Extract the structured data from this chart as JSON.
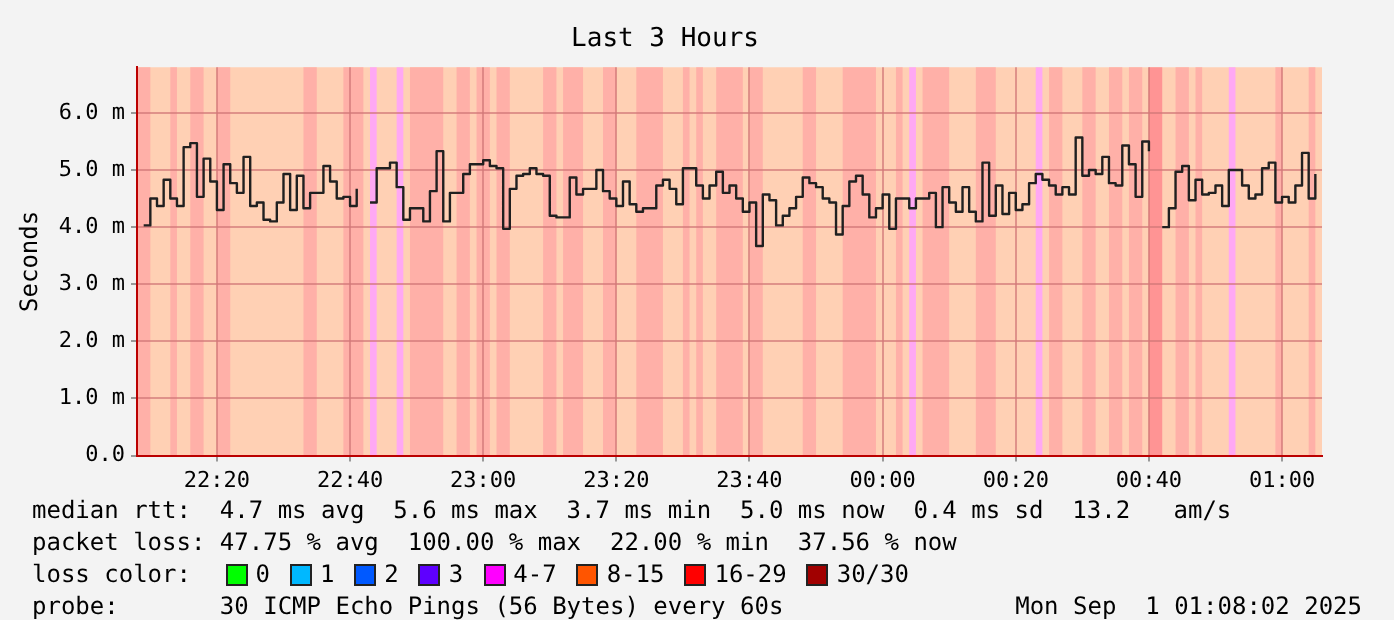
{
  "chart_data": {
    "type": "step",
    "title": "Last 3 Hours",
    "ylabel": "Seconds",
    "x": [
      "2025-08-31T22:09",
      "2025-08-31T22:10",
      "2025-08-31T22:11",
      "2025-08-31T22:12",
      "2025-08-31T22:13",
      "2025-08-31T22:14",
      "2025-08-31T22:15",
      "2025-08-31T22:16",
      "2025-08-31T22:17",
      "2025-08-31T22:18",
      "2025-08-31T22:19",
      "2025-08-31T22:20",
      "2025-08-31T22:21",
      "2025-08-31T22:22",
      "2025-08-31T22:23",
      "2025-08-31T22:24",
      "2025-08-31T22:25",
      "2025-08-31T22:26",
      "2025-08-31T22:27",
      "2025-08-31T22:28",
      "2025-08-31T22:29",
      "2025-08-31T22:30",
      "2025-08-31T22:31",
      "2025-08-31T22:32",
      "2025-08-31T22:33",
      "2025-08-31T22:34",
      "2025-08-31T22:35",
      "2025-08-31T22:36",
      "2025-08-31T22:37",
      "2025-08-31T22:38",
      "2025-08-31T22:39",
      "2025-08-31T22:40",
      "2025-08-31T22:41",
      "2025-08-31T22:42",
      "2025-08-31T22:43",
      "2025-08-31T22:44",
      "2025-08-31T22:45",
      "2025-08-31T22:46",
      "2025-08-31T22:47",
      "2025-08-31T22:48",
      "2025-08-31T22:49",
      "2025-08-31T22:50",
      "2025-08-31T22:51",
      "2025-08-31T22:52",
      "2025-08-31T22:53",
      "2025-08-31T22:54",
      "2025-08-31T22:55",
      "2025-08-31T22:56",
      "2025-08-31T22:57",
      "2025-08-31T22:58",
      "2025-08-31T22:59",
      "2025-08-31T23:00",
      "2025-08-31T23:01",
      "2025-08-31T23:02",
      "2025-08-31T23:03",
      "2025-08-31T23:04",
      "2025-08-31T23:05",
      "2025-08-31T23:06",
      "2025-08-31T23:07",
      "2025-08-31T23:08",
      "2025-08-31T23:09",
      "2025-08-31T23:10",
      "2025-08-31T23:11",
      "2025-08-31T23:12",
      "2025-08-31T23:13",
      "2025-08-31T23:14",
      "2025-08-31T23:15",
      "2025-08-31T23:16",
      "2025-08-31T23:17",
      "2025-08-31T23:18",
      "2025-08-31T23:19",
      "2025-08-31T23:20",
      "2025-08-31T23:21",
      "2025-08-31T23:22",
      "2025-08-31T23:23",
      "2025-08-31T23:24",
      "2025-08-31T23:25",
      "2025-08-31T23:26",
      "2025-08-31T23:27",
      "2025-08-31T23:28",
      "2025-08-31T23:29",
      "2025-08-31T23:30",
      "2025-08-31T23:31",
      "2025-08-31T23:32",
      "2025-08-31T23:33",
      "2025-08-31T23:34",
      "2025-08-31T23:35",
      "2025-08-31T23:36",
      "2025-08-31T23:37",
      "2025-08-31T23:38",
      "2025-08-31T23:39",
      "2025-08-31T23:40",
      "2025-08-31T23:41",
      "2025-08-31T23:42",
      "2025-08-31T23:43",
      "2025-08-31T23:44",
      "2025-08-31T23:45",
      "2025-08-31T23:46",
      "2025-08-31T23:47",
      "2025-08-31T23:48",
      "2025-08-31T23:49",
      "2025-08-31T23:50",
      "2025-08-31T23:51",
      "2025-08-31T23:52",
      "2025-08-31T23:53",
      "2025-08-31T23:54",
      "2025-08-31T23:55",
      "2025-08-31T23:56",
      "2025-08-31T23:57",
      "2025-08-31T23:58",
      "2025-08-31T23:59",
      "2025-09-01T00:00",
      "2025-09-01T00:01",
      "2025-09-01T00:02",
      "2025-09-01T00:03",
      "2025-09-01T00:04",
      "2025-09-01T00:05",
      "2025-09-01T00:06",
      "2025-09-01T00:07",
      "2025-09-01T00:08",
      "2025-09-01T00:09",
      "2025-09-01T00:10",
      "2025-09-01T00:11",
      "2025-09-01T00:12",
      "2025-09-01T00:13",
      "2025-09-01T00:14",
      "2025-09-01T00:15",
      "2025-09-01T00:16",
      "2025-09-01T00:17",
      "2025-09-01T00:18",
      "2025-09-01T00:19",
      "2025-09-01T00:20",
      "2025-09-01T00:21",
      "2025-09-01T00:22",
      "2025-09-01T00:23",
      "2025-09-01T00:24",
      "2025-09-01T00:25",
      "2025-09-01T00:26",
      "2025-09-01T00:27",
      "2025-09-01T00:28",
      "2025-09-01T00:29",
      "2025-09-01T00:30",
      "2025-09-01T00:31",
      "2025-09-01T00:32",
      "2025-09-01T00:33",
      "2025-09-01T00:34",
      "2025-09-01T00:35",
      "2025-09-01T00:36",
      "2025-09-01T00:37",
      "2025-09-01T00:38",
      "2025-09-01T00:39",
      "2025-09-01T00:40",
      "2025-09-01T00:41",
      "2025-09-01T00:42",
      "2025-09-01T00:43",
      "2025-09-01T00:44",
      "2025-09-01T00:45",
      "2025-09-01T00:46",
      "2025-09-01T00:47",
      "2025-09-01T00:48",
      "2025-09-01T00:49",
      "2025-09-01T00:50",
      "2025-09-01T00:51",
      "2025-09-01T00:52",
      "2025-09-01T00:53",
      "2025-09-01T00:54",
      "2025-09-01T00:55",
      "2025-09-01T00:56",
      "2025-09-01T00:57",
      "2025-09-01T00:58",
      "2025-09-01T00:59",
      "2025-09-01T01:00",
      "2025-09-01T01:01",
      "2025-09-01T01:02",
      "2025-09-01T01:03",
      "2025-09-01T01:04",
      "2025-09-01T01:05"
    ],
    "series": [
      {
        "color": "#202020",
        "values": [
          4.03,
          4.5,
          4.37,
          4.83,
          4.5,
          4.37,
          5.4,
          5.47,
          4.53,
          5.2,
          4.8,
          4.3,
          5.1,
          4.77,
          4.6,
          5.23,
          4.37,
          4.43,
          4.13,
          4.1,
          4.43,
          4.93,
          4.3,
          4.9,
          4.33,
          4.6,
          4.6,
          5.07,
          4.8,
          4.5,
          4.53,
          4.37,
          4.67,
          null,
          4.43,
          5.03,
          5.03,
          5.13,
          4.7,
          4.13,
          4.33,
          4.33,
          4.1,
          4.63,
          5.33,
          4.1,
          4.6,
          4.6,
          4.93,
          5.1,
          5.1,
          5.17,
          5.07,
          5.03,
          3.97,
          4.67,
          4.9,
          4.93,
          5.03,
          4.93,
          4.9,
          4.2,
          4.17,
          4.17,
          4.87,
          4.57,
          4.67,
          4.67,
          5.0,
          4.63,
          4.5,
          4.37,
          4.8,
          4.4,
          4.27,
          4.33,
          4.33,
          4.73,
          4.83,
          4.67,
          4.4,
          5.03,
          5.03,
          4.73,
          4.5,
          4.73,
          4.97,
          4.6,
          4.73,
          4.5,
          4.27,
          4.43,
          3.67,
          4.57,
          4.47,
          4.03,
          4.2,
          4.33,
          4.53,
          4.87,
          4.77,
          4.7,
          4.5,
          4.43,
          3.87,
          4.37,
          4.8,
          4.9,
          4.57,
          4.17,
          4.33,
          4.57,
          3.97,
          4.5,
          4.5,
          4.33,
          4.5,
          4.5,
          4.6,
          4.0,
          4.7,
          4.43,
          4.27,
          4.7,
          4.27,
          4.1,
          5.13,
          4.2,
          4.73,
          4.23,
          4.6,
          4.3,
          4.4,
          4.77,
          4.93,
          4.83,
          4.73,
          4.57,
          4.7,
          4.57,
          5.57,
          4.9,
          5.0,
          4.93,
          5.23,
          4.77,
          4.73,
          5.43,
          5.1,
          4.53,
          5.5,
          5.33,
          null,
          4.0,
          4.33,
          4.97,
          5.07,
          4.47,
          4.83,
          4.57,
          4.6,
          4.73,
          4.37,
          5.0,
          5.0,
          4.73,
          4.5,
          4.57,
          5.03,
          5.13,
          4.43,
          4.53,
          4.43,
          4.73,
          5.3,
          4.5,
          4.93
        ]
      }
    ],
    "xlim": [
      "2025-08-31T22:08",
      "2025-09-01T01:06"
    ],
    "xticks": [
      {
        "value": "2025-08-31T22:20",
        "label": "22:20"
      },
      {
        "value": "2025-08-31T22:40",
        "label": "22:40"
      },
      {
        "value": "2025-08-31T23:00",
        "label": "23:00"
      },
      {
        "value": "2025-08-31T23:20",
        "label": "23:20"
      },
      {
        "value": "2025-08-31T23:40",
        "label": "23:40"
      },
      {
        "value": "2025-09-01T00:00",
        "label": "00:00"
      },
      {
        "value": "2025-09-01T00:20",
        "label": "00:20"
      },
      {
        "value": "2025-09-01T00:40",
        "label": "00:40"
      },
      {
        "value": "2025-09-01T01:00",
        "label": "01:00"
      }
    ],
    "ylim": [
      0,
      6.8
    ],
    "yticks": [
      {
        "value": 0,
        "label": "0.0"
      },
      {
        "value": 1,
        "label": "1.0 m"
      },
      {
        "value": 2,
        "label": "2.0 m"
      },
      {
        "value": 3,
        "label": "3.0 m"
      },
      {
        "value": 4,
        "label": "4.0 m"
      },
      {
        "value": 5,
        "label": "5.0 m"
      },
      {
        "value": 6,
        "label": "6.0 m"
      }
    ],
    "grid": true,
    "marker": "none",
    "line_style": "solid",
    "legend": false,
    "bands": [
      {
        "axis": "x",
        "from": "2025-08-31T22:08",
        "to": "2025-09-01T01:06",
        "color": "#ffd0b4"
      },
      {
        "axis": "x",
        "from": "2025-08-31T22:08",
        "to": "2025-08-31T22:10",
        "color": "#ffb0a8"
      },
      {
        "axis": "x",
        "from": "2025-08-31T22:13",
        "to": "2025-08-31T22:14",
        "color": "#ffb0a8"
      },
      {
        "axis": "x",
        "from": "2025-08-31T22:16",
        "to": "2025-08-31T22:18",
        "color": "#ffb0a8"
      },
      {
        "axis": "x",
        "from": "2025-08-31T22:20",
        "to": "2025-08-31T22:22",
        "color": "#ffb0a8"
      },
      {
        "axis": "x",
        "from": "2025-08-31T22:33",
        "to": "2025-08-31T22:35",
        "color": "#ffb0a8"
      },
      {
        "axis": "x",
        "from": "2025-08-31T22:39",
        "to": "2025-08-31T22:42",
        "color": "#ffb0a8"
      },
      {
        "axis": "x",
        "from": "2025-08-31T22:43",
        "to": "2025-08-31T22:44",
        "color": "#ffa8f4"
      },
      {
        "axis": "x",
        "from": "2025-08-31T22:47",
        "to": "2025-08-31T22:48",
        "color": "#ffa8f4"
      },
      {
        "axis": "x",
        "from": "2025-08-31T22:49",
        "to": "2025-08-31T22:54",
        "color": "#ffb0a8"
      },
      {
        "axis": "x",
        "from": "2025-08-31T22:56",
        "to": "2025-08-31T22:58",
        "color": "#ffb0a8"
      },
      {
        "axis": "x",
        "from": "2025-08-31T22:59",
        "to": "2025-08-31T23:01",
        "color": "#ffb0a8"
      },
      {
        "axis": "x",
        "from": "2025-08-31T23:02",
        "to": "2025-08-31T23:04",
        "color": "#ffb0a8"
      },
      {
        "axis": "x",
        "from": "2025-08-31T23:09",
        "to": "2025-08-31T23:11",
        "color": "#ffb0a8"
      },
      {
        "axis": "x",
        "from": "2025-08-31T23:12",
        "to": "2025-08-31T23:15",
        "color": "#ffb0a8"
      },
      {
        "axis": "x",
        "from": "2025-08-31T23:18",
        "to": "2025-08-31T23:20",
        "color": "#ffb0a8"
      },
      {
        "axis": "x",
        "from": "2025-08-31T23:23",
        "to": "2025-08-31T23:27",
        "color": "#ffb0a8"
      },
      {
        "axis": "x",
        "from": "2025-08-31T23:30",
        "to": "2025-08-31T23:31",
        "color": "#ffb0a8"
      },
      {
        "axis": "x",
        "from": "2025-08-31T23:32",
        "to": "2025-08-31T23:33",
        "color": "#ffb0a8"
      },
      {
        "axis": "x",
        "from": "2025-08-31T23:35",
        "to": "2025-08-31T23:39",
        "color": "#ffb0a8"
      },
      {
        "axis": "x",
        "from": "2025-08-31T23:40",
        "to": "2025-08-31T23:42",
        "color": "#ffb0a8"
      },
      {
        "axis": "x",
        "from": "2025-08-31T23:48",
        "to": "2025-08-31T23:50",
        "color": "#ffb0a8"
      },
      {
        "axis": "x",
        "from": "2025-08-31T23:54",
        "to": "2025-08-31T23:59",
        "color": "#ffb0a8"
      },
      {
        "axis": "x",
        "from": "2025-09-01T00:02",
        "to": "2025-09-01T00:03",
        "color": "#ffb0a8"
      },
      {
        "axis": "x",
        "from": "2025-09-01T00:04",
        "to": "2025-09-01T00:05",
        "color": "#ffa8f4"
      },
      {
        "axis": "x",
        "from": "2025-09-01T00:06",
        "to": "2025-09-01T00:10",
        "color": "#ffb0a8"
      },
      {
        "axis": "x",
        "from": "2025-09-01T00:14",
        "to": "2025-09-01T00:17",
        "color": "#ffb0a8"
      },
      {
        "axis": "x",
        "from": "2025-09-01T00:23",
        "to": "2025-09-01T00:24",
        "color": "#ffa8f4"
      },
      {
        "axis": "x",
        "from": "2025-09-01T00:25",
        "to": "2025-09-01T00:27",
        "color": "#ffb0a8"
      },
      {
        "axis": "x",
        "from": "2025-09-01T00:30",
        "to": "2025-09-01T00:32",
        "color": "#ffb0a8"
      },
      {
        "axis": "x",
        "from": "2025-09-01T00:34",
        "to": "2025-09-01T00:36",
        "color": "#ffb0a8"
      },
      {
        "axis": "x",
        "from": "2025-09-01T00:37",
        "to": "2025-09-01T00:39",
        "color": "#ffb0a8"
      },
      {
        "axis": "x",
        "from": "2025-09-01T00:40",
        "to": "2025-09-01T00:42",
        "color": "#ff9494"
      },
      {
        "axis": "x",
        "from": "2025-09-01T00:44",
        "to": "2025-09-01T00:46",
        "color": "#ffb0a8"
      },
      {
        "axis": "x",
        "from": "2025-09-01T00:47",
        "to": "2025-09-01T00:48",
        "color": "#ffb0a8"
      },
      {
        "axis": "x",
        "from": "2025-09-01T00:52",
        "to": "2025-09-01T00:53",
        "color": "#ffa8f4"
      },
      {
        "axis": "x",
        "from": "2025-09-01T00:59",
        "to": "2025-09-01T01:00",
        "color": "#ffb0a8"
      },
      {
        "axis": "x",
        "from": "2025-09-01T01:04",
        "to": "2025-09-01T01:05",
        "color": "#ffb0a8"
      }
    ],
    "annotations": [
      "median rtt:  4.7 ms avg  5.6 ms max  3.7 ms min  5.0 ms now  0.4 ms sd  13.2   am/s",
      "packet loss: 47.75 % avg  100.00 % max  22.00 % min  37.56 % now",
      "loss color:",
      "0",
      "1",
      "2",
      "3",
      "4-7",
      "8-15",
      "16-29",
      "30/30",
      "probe:       30 ICMP Echo Pings (56 Bytes) every 60s",
      "Mon Sep  1 01:08:02 2025"
    ]
  }
}
